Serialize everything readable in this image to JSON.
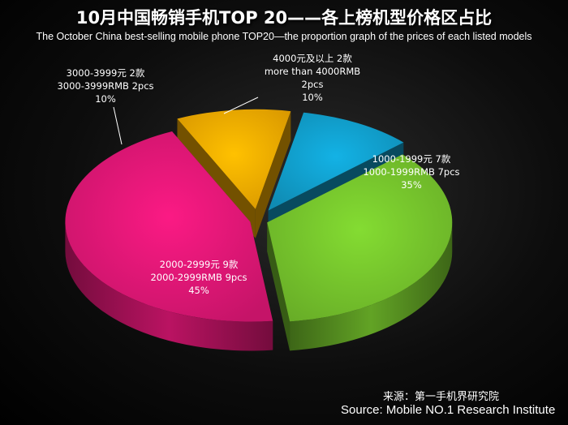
{
  "title": "10月中国畅销手机TOP 20——各上榜机型价格区占比",
  "subtitle": "The October China best-selling mobile phone TOP20—the proportion graph of the prices of each listed models",
  "source_cn": "来源：第一手机界研究院",
  "source_en": "Source: Mobile NO.1 Research Institute",
  "colors": {
    "seg_1000": "#7acc2e",
    "seg_2000": "#e8187a",
    "seg_3000": "#ffb300",
    "seg_4000": "#12a5d4",
    "background": "#000000"
  },
  "chart_data": {
    "type": "pie",
    "title": "10月中国畅销手机TOP 20——各上榜机型价格区占比",
    "subtitle": "The October China best-selling mobile phone TOP20—the proportion graph of the prices of each listed models",
    "style": "3d-exploded",
    "slices": [
      {
        "key": "seg_1000",
        "values_percent": 35,
        "count": 7,
        "label_lines": [
          "1000-1999元 7款",
          "1000-1999RMB 7pcs",
          "35%"
        ]
      },
      {
        "key": "seg_2000",
        "values_percent": 45,
        "count": 9,
        "label_lines": [
          "2000-2999元 9款",
          "2000-2999RMB 9pcs",
          "45%"
        ]
      },
      {
        "key": "seg_3000",
        "values_percent": 10,
        "count": 2,
        "label_lines": [
          "3000-3999元 2款",
          "3000-3999RMB 2pcs",
          "10%"
        ]
      },
      {
        "key": "seg_4000",
        "values_percent": 10,
        "count": 2,
        "label_lines": [
          "4000元及以上 2款",
          "more than 4000RMB",
          "2pcs",
          "10%"
        ]
      }
    ]
  }
}
